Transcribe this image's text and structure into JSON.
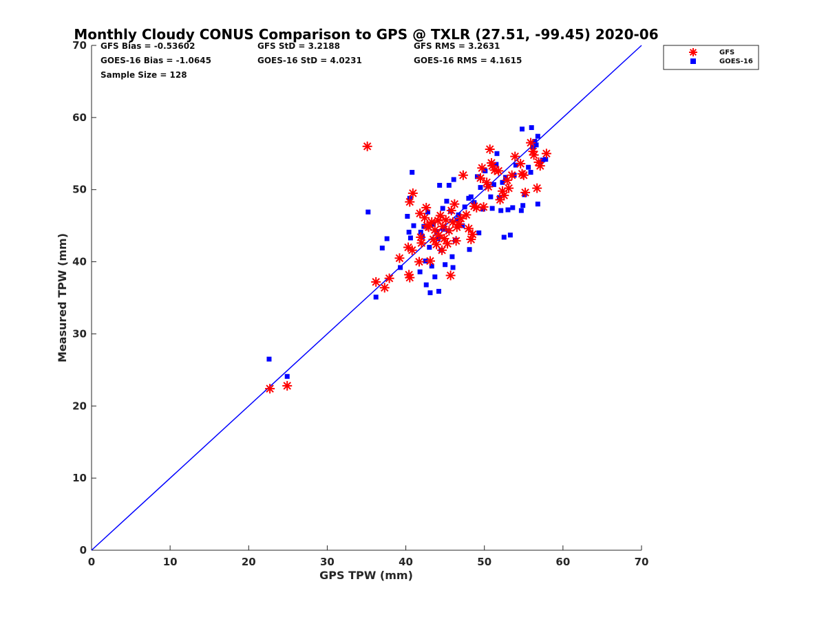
{
  "chart_data": {
    "type": "scatter",
    "title": "Monthly Cloudy CONUS Comparison to GPS @ TXLR (27.51, -99.45) 2020-06",
    "xlabel": "GPS TPW (mm)",
    "ylabel": "Measured TPW (mm)",
    "xlim": [
      0,
      70
    ],
    "ylim": [
      0,
      70
    ],
    "xticks": [
      "0",
      "10",
      "20",
      "30",
      "40",
      "50",
      "60",
      "70"
    ],
    "yticks": [
      "0",
      "10",
      "20",
      "30",
      "40",
      "50",
      "60",
      "70"
    ],
    "grid": false,
    "legend_position": "top-right, outside plot",
    "stats": [
      [
        "GFS Bias = -0.53602",
        "GFS StD = 3.2188",
        "GFS RMS = 3.2631"
      ],
      [
        "GOES-16 Bias = -1.0645",
        "GOES-16 StD = 4.0231",
        "GOES-16 RMS = 4.1615"
      ],
      [
        "Sample Size = 128"
      ]
    ],
    "reference_line": {
      "type": "one-to-one",
      "x": [
        0,
        70
      ],
      "y": [
        0,
        70
      ],
      "color": "#0000ff"
    },
    "series": [
      {
        "name": "GFS",
        "marker": "asterisk",
        "color": "#ff0000",
        "points": [
          [
            35.1,
            56.0
          ],
          [
            22.7,
            22.4
          ],
          [
            24.9,
            22.8
          ],
          [
            36.2,
            37.2
          ],
          [
            37.3,
            36.4
          ],
          [
            37.9,
            37.7
          ],
          [
            39.2,
            40.5
          ],
          [
            40.4,
            38.2
          ],
          [
            40.5,
            37.8
          ],
          [
            40.3,
            42.0
          ],
          [
            40.8,
            41.6
          ],
          [
            40.5,
            48.3
          ],
          [
            40.9,
            49.5
          ],
          [
            41.7,
            40.0
          ],
          [
            41.8,
            46.7
          ],
          [
            41.9,
            43.4
          ],
          [
            42.0,
            42.6
          ],
          [
            42.4,
            46.1
          ],
          [
            42.6,
            47.5
          ],
          [
            42.7,
            45.0
          ],
          [
            42.9,
            44.8
          ],
          [
            43.1,
            40.1
          ],
          [
            43.3,
            45.5
          ],
          [
            43.5,
            43.1
          ],
          [
            43.7,
            44.4
          ],
          [
            43.9,
            42.4
          ],
          [
            44.1,
            45.7
          ],
          [
            44.2,
            43.7
          ],
          [
            44.4,
            46.4
          ],
          [
            44.6,
            41.6
          ],
          [
            44.7,
            44.9
          ],
          [
            44.9,
            43.2
          ],
          [
            45.1,
            45.8
          ],
          [
            45.3,
            42.5
          ],
          [
            45.5,
            44.3
          ],
          [
            45.7,
            38.1
          ],
          [
            45.8,
            47.1
          ],
          [
            46.0,
            45.5
          ],
          [
            46.2,
            48.0
          ],
          [
            46.4,
            42.9
          ],
          [
            46.5,
            44.8
          ],
          [
            46.8,
            45.2
          ],
          [
            47.0,
            46.0
          ],
          [
            47.3,
            52.0
          ],
          [
            47.7,
            46.5
          ],
          [
            48.0,
            44.6
          ],
          [
            48.3,
            43.1
          ],
          [
            48.5,
            43.8
          ],
          [
            48.7,
            47.7
          ],
          [
            49.0,
            47.5
          ],
          [
            49.5,
            51.6
          ],
          [
            49.7,
            53.0
          ],
          [
            49.9,
            47.6
          ],
          [
            50.3,
            51.0
          ],
          [
            50.5,
            50.4
          ],
          [
            50.7,
            55.6
          ],
          [
            50.9,
            53.7
          ],
          [
            51.0,
            53.3
          ],
          [
            51.3,
            52.7
          ],
          [
            51.8,
            52.6
          ],
          [
            52.0,
            48.6
          ],
          [
            52.3,
            49.8
          ],
          [
            52.5,
            49.2
          ],
          [
            52.9,
            51.3
          ],
          [
            53.1,
            50.2
          ],
          [
            53.5,
            52.0
          ],
          [
            53.9,
            54.6
          ],
          [
            54.6,
            53.6
          ],
          [
            54.8,
            52.2
          ],
          [
            55.0,
            52.0
          ],
          [
            55.2,
            49.6
          ],
          [
            55.9,
            56.5
          ],
          [
            56.2,
            55.3
          ],
          [
            56.3,
            54.8
          ],
          [
            56.7,
            50.2
          ],
          [
            56.9,
            53.8
          ],
          [
            57.1,
            53.3
          ],
          [
            57.9,
            55.0
          ]
        ]
      },
      {
        "name": "GOES-16",
        "marker": "square",
        "color": "#0000ff",
        "points": [
          [
            22.6,
            26.5
          ],
          [
            24.9,
            24.1
          ],
          [
            35.2,
            46.9
          ],
          [
            36.2,
            35.1
          ],
          [
            37.0,
            41.9
          ],
          [
            37.6,
            43.2
          ],
          [
            39.3,
            39.2
          ],
          [
            40.2,
            46.3
          ],
          [
            40.4,
            44.1
          ],
          [
            40.6,
            43.3
          ],
          [
            40.5,
            48.8
          ],
          [
            40.8,
            52.4
          ],
          [
            41.0,
            45.0
          ],
          [
            41.8,
            38.6
          ],
          [
            41.9,
            44.1
          ],
          [
            42.1,
            43.5
          ],
          [
            42.3,
            44.9
          ],
          [
            42.5,
            40.1
          ],
          [
            42.6,
            36.8
          ],
          [
            42.8,
            46.9
          ],
          [
            43.0,
            42.0
          ],
          [
            43.1,
            35.7
          ],
          [
            43.3,
            39.4
          ],
          [
            43.5,
            45.2
          ],
          [
            43.7,
            37.9
          ],
          [
            43.9,
            44.2
          ],
          [
            44.1,
            43.2
          ],
          [
            44.2,
            35.9
          ],
          [
            44.3,
            50.6
          ],
          [
            44.5,
            41.6
          ],
          [
            44.7,
            47.4
          ],
          [
            44.8,
            44.5
          ],
          [
            45.0,
            39.6
          ],
          [
            45.2,
            48.4
          ],
          [
            45.4,
            44.3
          ],
          [
            45.5,
            50.6
          ],
          [
            45.7,
            47.0
          ],
          [
            45.9,
            40.7
          ],
          [
            46.0,
            39.2
          ],
          [
            46.1,
            51.4
          ],
          [
            46.3,
            43.0
          ],
          [
            46.5,
            45.8
          ],
          [
            46.7,
            46.5
          ],
          [
            47.2,
            45.0
          ],
          [
            47.5,
            47.6
          ],
          [
            48.0,
            48.8
          ],
          [
            48.1,
            41.7
          ],
          [
            48.3,
            49.0
          ],
          [
            48.7,
            48.2
          ],
          [
            49.1,
            51.8
          ],
          [
            49.3,
            44.0
          ],
          [
            49.5,
            50.3
          ],
          [
            49.8,
            47.3
          ],
          [
            50.1,
            52.6
          ],
          [
            50.5,
            50.5
          ],
          [
            50.8,
            49.0
          ],
          [
            51.0,
            47.4
          ],
          [
            51.2,
            50.7
          ],
          [
            51.5,
            53.5
          ],
          [
            51.6,
            55.0
          ],
          [
            51.9,
            48.9
          ],
          [
            52.1,
            47.1
          ],
          [
            52.3,
            51.0
          ],
          [
            52.5,
            43.4
          ],
          [
            52.7,
            51.7
          ],
          [
            53.0,
            47.2
          ],
          [
            53.3,
            43.7
          ],
          [
            53.6,
            47.5
          ],
          [
            53.8,
            52.0
          ],
          [
            54.0,
            53.4
          ],
          [
            54.7,
            47.1
          ],
          [
            54.9,
            47.8
          ],
          [
            54.8,
            58.4
          ],
          [
            55.1,
            49.3
          ],
          [
            55.6,
            53.1
          ],
          [
            55.9,
            52.4
          ],
          [
            56.0,
            58.6
          ],
          [
            56.2,
            55.9
          ],
          [
            56.4,
            56.7
          ],
          [
            56.6,
            56.2
          ],
          [
            56.8,
            57.4
          ],
          [
            56.8,
            48.0
          ],
          [
            57.1,
            53.8
          ],
          [
            57.4,
            54.1
          ],
          [
            57.8,
            54.2
          ]
        ]
      }
    ]
  }
}
